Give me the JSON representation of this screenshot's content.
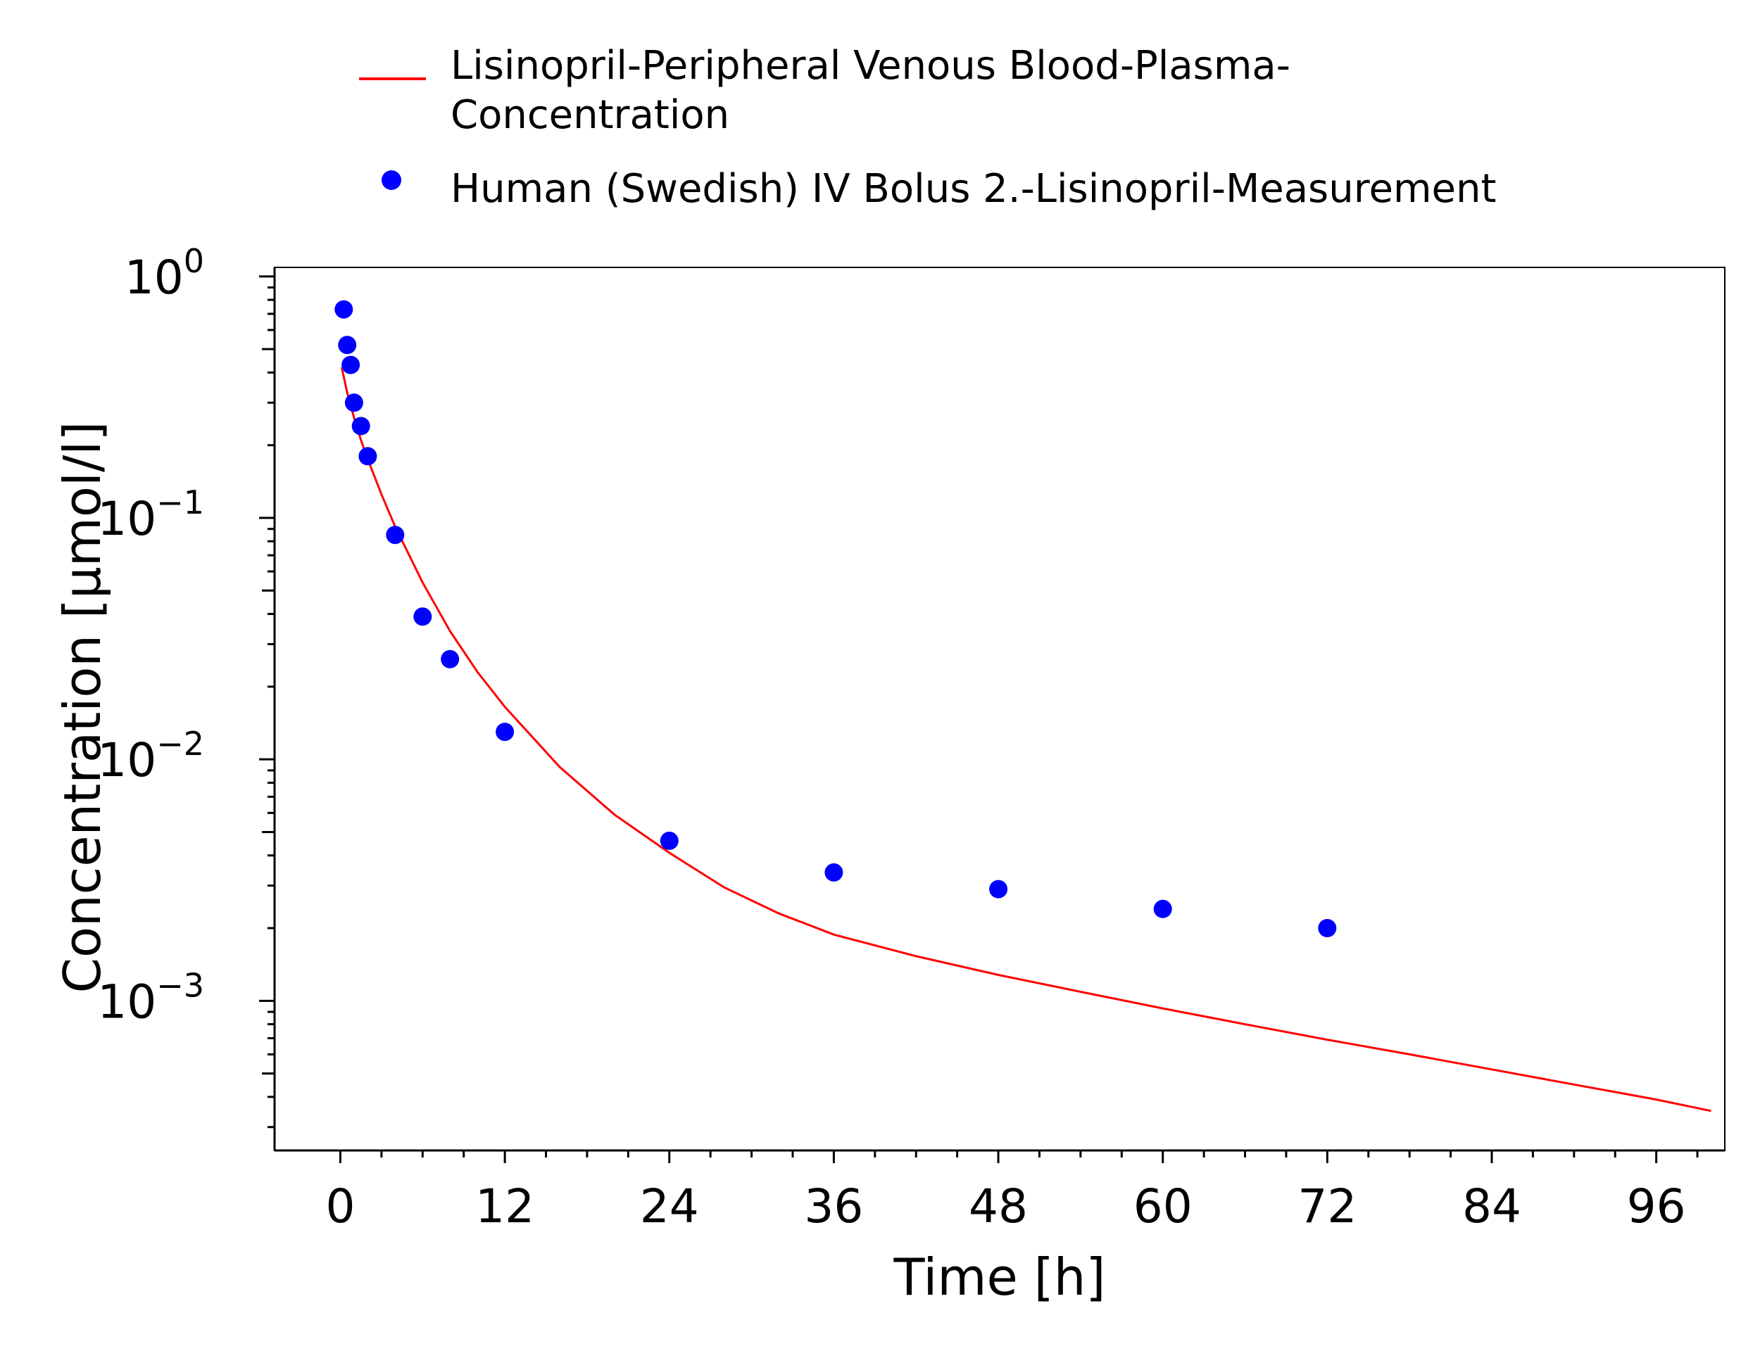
{
  "chart_data": {
    "type": "line",
    "title": "",
    "xlabel": "Time [h]",
    "ylabel": "Concentration [µmol/l]",
    "xlim": [
      -4.8,
      101
    ],
    "ylim": [
      0.00024,
      1.09
    ],
    "yscale": "log",
    "grid": false,
    "legend_position": "top",
    "x_ticks": [
      0,
      12,
      24,
      36,
      48,
      60,
      72,
      84,
      96
    ],
    "x_tick_labels": [
      "0",
      "12",
      "24",
      "36",
      "48",
      "60",
      "72",
      "84",
      "96"
    ],
    "y_ticks": [
      {
        "value": 1,
        "base": "10",
        "exp": "0"
      },
      {
        "value": 0.1,
        "base": "10",
        "exp": "−1"
      },
      {
        "value": 0.01,
        "base": "10",
        "exp": "−2"
      },
      {
        "value": 0.001,
        "base": "10",
        "exp": "−3"
      }
    ],
    "series": [
      {
        "name": "Lisinopril-Peripheral Venous Blood-Plasma-Concentration",
        "legend_lines": [
          "Lisinopril-Peripheral Venous Blood-Plasma-",
          "Concentration"
        ],
        "kind": "line",
        "color": "#ff0000",
        "x": [
          0.1,
          0.5,
          1,
          1.5,
          2,
          3,
          4,
          6,
          8,
          10,
          12,
          16,
          20,
          24,
          28,
          32,
          36,
          42,
          48,
          54,
          60,
          66,
          72,
          78,
          84,
          90,
          96,
          100
        ],
        "y": [
          0.42,
          0.33,
          0.26,
          0.21,
          0.175,
          0.125,
          0.092,
          0.054,
          0.034,
          0.023,
          0.0165,
          0.0093,
          0.0059,
          0.0041,
          0.00295,
          0.0023,
          0.00188,
          0.00153,
          0.00128,
          0.00109,
          0.00093,
          0.0008,
          0.00069,
          0.0006,
          0.00052,
          0.00045,
          0.00039,
          0.00035
        ]
      },
      {
        "name": "Human (Swedish) IV Bolus 2.-Lisinopril-Measurement",
        "kind": "scatter",
        "color": "#0000ff",
        "x": [
          0.25,
          0.5,
          0.75,
          1,
          1.5,
          2,
          4,
          6,
          8,
          12,
          24,
          36,
          48,
          60,
          72
        ],
        "y": [
          0.73,
          0.52,
          0.43,
          0.3,
          0.24,
          0.18,
          0.085,
          0.039,
          0.026,
          0.013,
          0.0046,
          0.0034,
          0.0029,
          0.0024,
          0.002
        ]
      }
    ]
  }
}
